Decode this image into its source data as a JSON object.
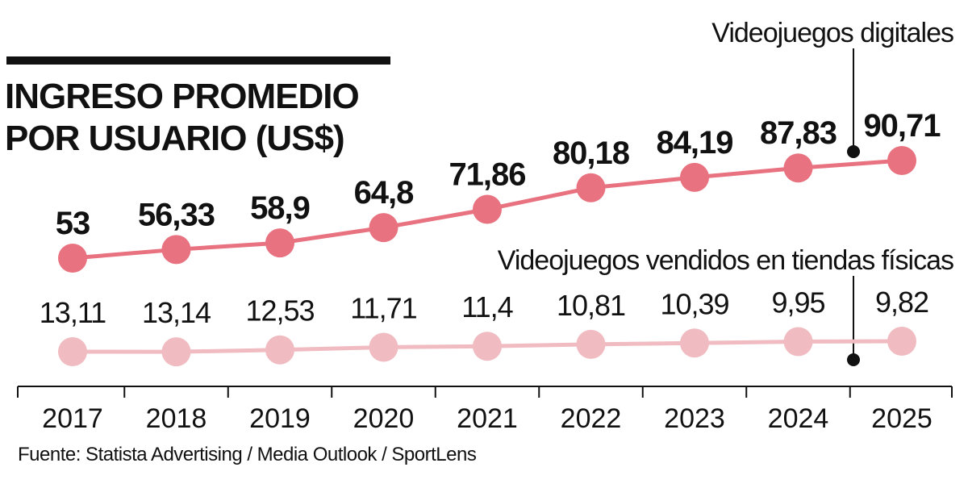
{
  "chart_data": {
    "type": "line",
    "title": "INGRESO PROMEDIO POR USUARIO (US$)",
    "title_lines": [
      "INGRESO PROMEDIO",
      "POR USUARIO (US$)"
    ],
    "categories": [
      "2017",
      "2018",
      "2019",
      "2020",
      "2021",
      "2022",
      "2023",
      "2024",
      "2025"
    ],
    "series": [
      {
        "name": "Videojuegos digitales",
        "values": [
          53,
          56.33,
          58.9,
          64.8,
          71.86,
          80.18,
          84.19,
          87.83,
          90.71
        ],
        "labels": [
          "53",
          "56,33",
          "58,9",
          "64,8",
          "71,86",
          "80,18",
          "84,19",
          "87,83",
          "90,71"
        ],
        "color": "#e8727f"
      },
      {
        "name": "Videojuegos vendidos en tiendas físicas",
        "values": [
          13.11,
          13.14,
          12.53,
          11.71,
          11.4,
          10.81,
          10.39,
          9.95,
          9.82
        ],
        "labels": [
          "13,11",
          "13,14",
          "12,53",
          "11,71",
          "11,4",
          "10,81",
          "10,39",
          "9,95",
          "9,82"
        ],
        "color": "#f0bcc2"
      }
    ],
    "xlabel": "",
    "ylabel": "",
    "grid": false,
    "legend": "direct labels with callout lines at top-right"
  },
  "source": "Fuente: Statista Advertising / Media Outlook / SportLens",
  "colors": {
    "axis": "#111111",
    "text": "#111111"
  }
}
